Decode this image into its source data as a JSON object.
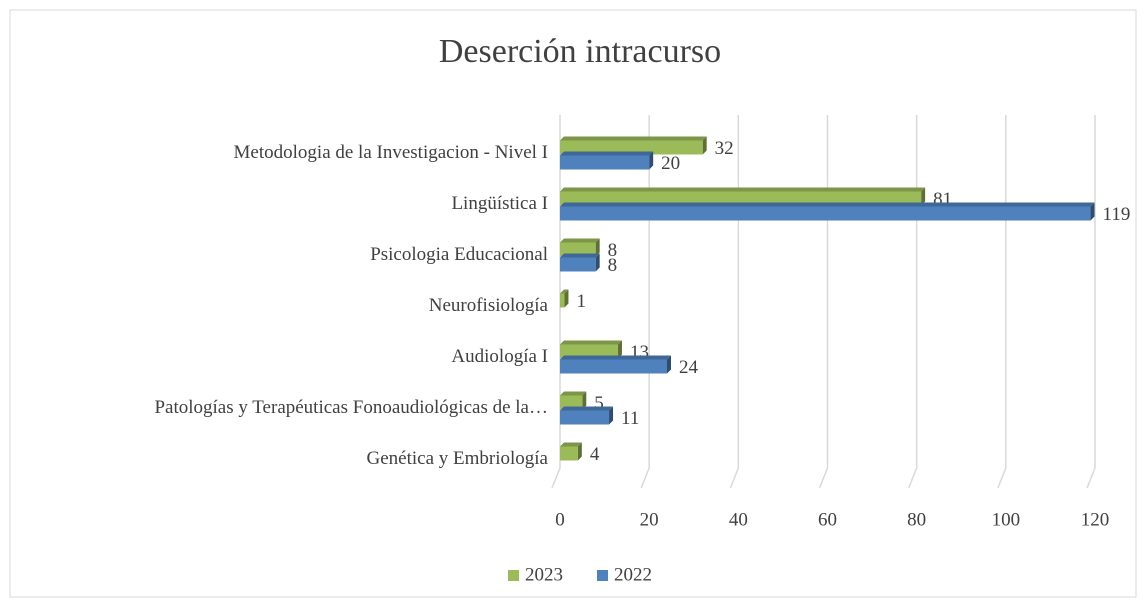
{
  "chart_data": {
    "type": "bar",
    "orientation": "horizontal",
    "title": "Deserción intracurso",
    "categories": [
      "Metodologia de la Investigacion -  Nivel I",
      "Lingüística I",
      "Psicologia Educacional",
      "Neurofisiología",
      "Audiología I",
      "Patologías y Terapéuticas Fonoaudiológicas de la…",
      "Genética y Embriología"
    ],
    "series": [
      {
        "name": "2023",
        "color": "#9bbb59",
        "values": [
          32,
          81,
          8,
          1,
          13,
          5,
          4
        ]
      },
      {
        "name": "2022",
        "color": "#4f81bd",
        "values": [
          20,
          119,
          8,
          null,
          24,
          11,
          null
        ]
      }
    ],
    "xlim": [
      0,
      120
    ],
    "xticks": [
      0,
      20,
      40,
      60,
      80,
      100,
      120
    ],
    "grid": true,
    "legend": "bottom"
  }
}
